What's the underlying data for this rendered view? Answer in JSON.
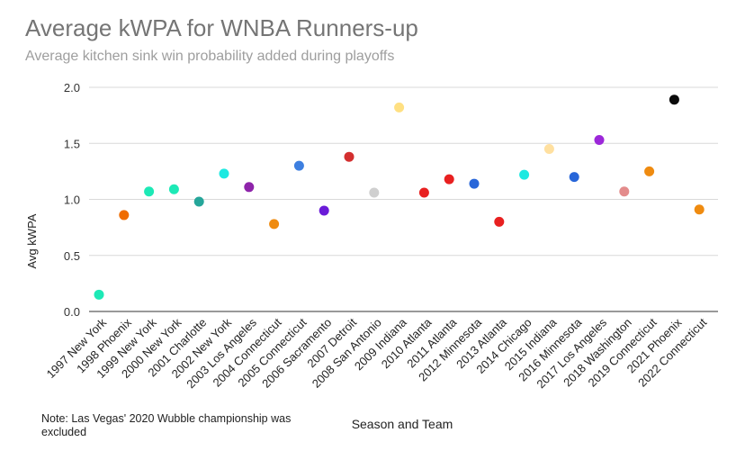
{
  "chart_data": {
    "type": "scatter",
    "title": "Average kWPA for WNBA Runners-up",
    "subtitle": "Average kitchen sink win probability added during playoffs",
    "xlabel": "Season and Team",
    "ylabel": "Avg kWPA",
    "ylim": [
      0,
      2.0
    ],
    "yticks": [
      "0.0",
      "0.5",
      "1.0",
      "1.5",
      "2.0"
    ],
    "grid": true,
    "note": "Note: Las Vegas' 2020 Wubble championship was excluded",
    "categories": [
      "1997 New York",
      "1998 Phoenix",
      "1999 New York",
      "2000 New York",
      "2001 Charlotte",
      "2002 New York",
      "2003 Los Angeles",
      "2004 Connecticut",
      "2005 Connecticut",
      "2006 Sacramento",
      "2007 Detroit",
      "2008 San Antonio",
      "2009 Indiana",
      "2010 Atlanta",
      "2011 Atlanta",
      "2012 Minnesota",
      "2013 Atlanta",
      "2014 Chicago",
      "2015 Indiana",
      "2016 Minnesota",
      "2017 Los Angeles",
      "2018 Washington",
      "2019 Connecticut",
      "2021 Phoenix",
      "2022 Connecticut"
    ],
    "values": [
      0.15,
      0.86,
      1.07,
      1.09,
      0.98,
      1.23,
      1.11,
      0.78,
      1.3,
      0.9,
      1.38,
      1.06,
      1.82,
      1.06,
      1.18,
      1.14,
      0.8,
      1.22,
      1.45,
      1.2,
      1.53,
      1.07,
      1.25,
      1.89,
      0.91
    ],
    "colors": [
      "#1de9b6",
      "#ef6c00",
      "#1de9b6",
      "#1de9b6",
      "#26a69a",
      "#1de9e1",
      "#8e24aa",
      "#ef8b10",
      "#3d7fe0",
      "#6a1bd8",
      "#d32f2f",
      "#cfcfcf",
      "#ffe082",
      "#e82020",
      "#e82020",
      "#2866d9",
      "#e82020",
      "#1de9e1",
      "#ffe0a0",
      "#2866d9",
      "#9c27d9",
      "#e38b8b",
      "#ef8b10",
      "#0a0a0a",
      "#ef8b10"
    ]
  }
}
